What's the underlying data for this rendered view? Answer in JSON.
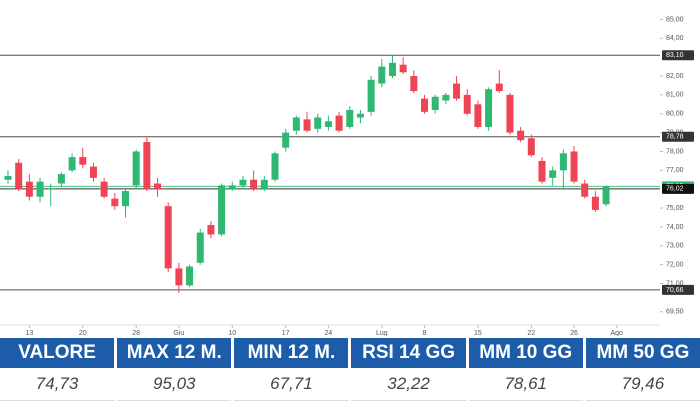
{
  "chart_data": {
    "type": "candlestick",
    "up_color": "#2eb872",
    "down_color": "#ef4454",
    "xlim": [
      -0.75,
      61.05
    ],
    "xticks": [
      {
        "value": 2,
        "label": "13"
      },
      {
        "value": 7,
        "label": "20"
      },
      {
        "value": 12,
        "label": "28"
      },
      {
        "value": 16,
        "label": "Giu"
      },
      {
        "value": 21,
        "label": "10"
      },
      {
        "value": 26,
        "label": "17"
      },
      {
        "value": 30,
        "label": "24"
      },
      {
        "value": 35,
        "label": "Lug"
      },
      {
        "value": 39,
        "label": "8"
      },
      {
        "value": 44,
        "label": "15"
      },
      {
        "value": 49,
        "label": "22"
      },
      {
        "value": 53,
        "label": "26"
      },
      {
        "value": 57,
        "label": "Ago"
      }
    ],
    "ylim": [
      68.8,
      85.5
    ],
    "yticks": [
      {
        "value": 85,
        "label": "85,00"
      },
      {
        "value": 84,
        "label": "84,00"
      },
      {
        "value": 82,
        "label": "82,00"
      },
      {
        "value": 81,
        "label": "81,00"
      },
      {
        "value": 80,
        "label": "80,00"
      },
      {
        "value": 79,
        "label": "79,00"
      },
      {
        "value": 78,
        "label": "78,00"
      },
      {
        "value": 77,
        "label": "77,00"
      },
      {
        "value": 75,
        "label": "75,00"
      },
      {
        "value": 74,
        "label": "74,00"
      },
      {
        "value": 73,
        "label": "73,00"
      },
      {
        "value": 72,
        "label": "72,00"
      },
      {
        "value": 71,
        "label": "71,00"
      },
      {
        "value": 69.5,
        "label": "69,50"
      }
    ],
    "levels": [
      {
        "value": 83.1,
        "label": "83,10",
        "color": "#333333"
      },
      {
        "value": 78.78,
        "label": "78,78",
        "color": "#333333"
      },
      {
        "value": 76.15,
        "label": "76,15",
        "color": "#2eb872"
      },
      {
        "value": 76.02,
        "label": "76,02",
        "color": "#111111"
      },
      {
        "value": 70.66,
        "label": "70,66",
        "color": "#333333"
      }
    ],
    "candles": [
      [
        76.5,
        77.0,
        76.3,
        76.7
      ],
      [
        77.4,
        77.6,
        75.9,
        76.0
      ],
      [
        76.4,
        76.8,
        75.4,
        75.6
      ],
      [
        75.6,
        76.6,
        75.3,
        76.4
      ],
      [
        76.0,
        76.3,
        75.1,
        76.05
      ],
      [
        76.3,
        76.9,
        76.1,
        76.8
      ],
      [
        77.0,
        77.9,
        76.9,
        77.7
      ],
      [
        77.7,
        78.2,
        77.1,
        77.3
      ],
      [
        77.2,
        77.4,
        76.4,
        76.6
      ],
      [
        76.4,
        76.6,
        75.5,
        75.6
      ],
      [
        75.5,
        75.8,
        74.9,
        75.1
      ],
      [
        75.1,
        76.0,
        74.5,
        75.9
      ],
      [
        76.2,
        78.1,
        76.0,
        78.0
      ],
      [
        78.5,
        78.8,
        75.9,
        76.0
      ],
      [
        76.3,
        76.6,
        75.6,
        76.0
      ],
      [
        75.1,
        75.3,
        71.6,
        71.8
      ],
      [
        71.8,
        72.1,
        70.5,
        70.9
      ],
      [
        70.9,
        72.0,
        70.8,
        71.9
      ],
      [
        72.1,
        73.9,
        72.0,
        73.7
      ],
      [
        74.1,
        74.3,
        73.4,
        73.6
      ],
      [
        73.6,
        76.3,
        73.5,
        76.2
      ],
      [
        76.0,
        76.4,
        75.9,
        76.2
      ],
      [
        76.2,
        76.7,
        76.0,
        76.5
      ],
      [
        76.5,
        77.0,
        75.9,
        76.0
      ],
      [
        76.0,
        76.7,
        75.9,
        76.5
      ],
      [
        76.5,
        78.0,
        76.4,
        77.9
      ],
      [
        78.2,
        79.2,
        78.0,
        79.0
      ],
      [
        79.1,
        79.9,
        78.9,
        79.8
      ],
      [
        79.7,
        80.1,
        79.0,
        79.1
      ],
      [
        79.2,
        80.0,
        79.0,
        79.8
      ],
      [
        79.3,
        79.9,
        79.1,
        79.6
      ],
      [
        79.9,
        80.1,
        79.0,
        79.1
      ],
      [
        79.3,
        80.4,
        79.2,
        80.2
      ],
      [
        79.8,
        80.2,
        79.5,
        80.0
      ],
      [
        80.1,
        82.0,
        79.9,
        81.8
      ],
      [
        81.6,
        82.9,
        81.4,
        82.5
      ],
      [
        82.0,
        83.1,
        81.9,
        82.7
      ],
      [
        82.6,
        83.0,
        82.1,
        82.2
      ],
      [
        82.0,
        82.3,
        81.1,
        81.2
      ],
      [
        80.8,
        81.0,
        80.0,
        80.1
      ],
      [
        80.2,
        81.0,
        80.0,
        80.9
      ],
      [
        80.7,
        81.1,
        80.5,
        81.0
      ],
      [
        81.6,
        82.0,
        80.7,
        80.8
      ],
      [
        81.0,
        81.3,
        79.9,
        80.0
      ],
      [
        80.5,
        80.7,
        79.2,
        79.3
      ],
      [
        79.3,
        81.4,
        79.1,
        81.3
      ],
      [
        81.6,
        82.3,
        81.1,
        81.2
      ],
      [
        81.0,
        81.1,
        78.9,
        79.0
      ],
      [
        79.1,
        79.3,
        78.5,
        78.6
      ],
      [
        78.7,
        78.9,
        77.7,
        77.8
      ],
      [
        77.5,
        77.7,
        76.3,
        76.4
      ],
      [
        76.6,
        77.2,
        76.2,
        77.0
      ],
      [
        77.0,
        78.1,
        76.0,
        77.9
      ],
      [
        78.0,
        78.3,
        76.3,
        76.4
      ],
      [
        76.3,
        76.5,
        75.5,
        75.6
      ],
      [
        75.6,
        75.9,
        74.8,
        74.9
      ],
      [
        75.2,
        76.2,
        75.1,
        76.15
      ]
    ]
  },
  "table": {
    "headers": [
      "VALORE",
      "MAX 12 M.",
      "MIN 12 M.",
      "RSI 14 GG",
      "MM 10 GG",
      "MM 50 GG"
    ],
    "values": [
      "74,73",
      "95,03",
      "67,71",
      "32,22",
      "78,61",
      "79,46"
    ]
  }
}
